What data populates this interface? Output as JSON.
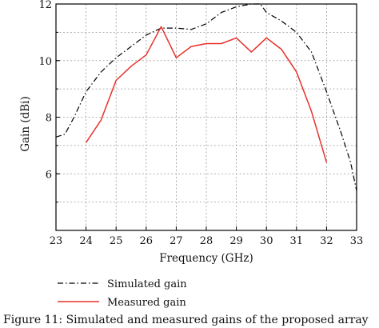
{
  "chart_data": {
    "type": "line",
    "xlabel": "Frequency (GHz)",
    "ylabel": "Gain (dBi)",
    "xlim": [
      23,
      33
    ],
    "ylim": [
      4,
      12
    ],
    "xticks": [
      23,
      24,
      25,
      26,
      27,
      28,
      29,
      30,
      31,
      32,
      33
    ],
    "yticks": [
      6,
      8,
      10,
      12
    ],
    "grid": true,
    "legend_position": "bottom-left",
    "series": [
      {
        "name": "Simulated gain",
        "style": "dash-dot",
        "color": "#000000",
        "points": [
          [
            23.0,
            7.3
          ],
          [
            23.3,
            7.4
          ],
          [
            23.6,
            8.0
          ],
          [
            24.0,
            8.9
          ],
          [
            24.5,
            9.6
          ],
          [
            25.0,
            10.1
          ],
          [
            25.5,
            10.5
          ],
          [
            26.0,
            10.9
          ],
          [
            26.5,
            11.15
          ],
          [
            27.0,
            11.15
          ],
          [
            27.5,
            11.1
          ],
          [
            28.0,
            11.3
          ],
          [
            28.5,
            11.7
          ],
          [
            29.0,
            11.9
          ],
          [
            29.5,
            12.0
          ],
          [
            29.8,
            12.0
          ],
          [
            30.0,
            11.7
          ],
          [
            30.5,
            11.4
          ],
          [
            31.0,
            11.0
          ],
          [
            31.5,
            10.3
          ],
          [
            32.0,
            8.9
          ],
          [
            32.5,
            7.4
          ],
          [
            32.8,
            6.4
          ],
          [
            33.0,
            5.4
          ]
        ]
      },
      {
        "name": "Measured gain",
        "style": "solid",
        "color": "#e8302a",
        "points": [
          [
            24.0,
            7.1
          ],
          [
            24.5,
            7.9
          ],
          [
            25.0,
            9.3
          ],
          [
            25.5,
            9.8
          ],
          [
            26.0,
            10.2
          ],
          [
            26.5,
            11.2
          ],
          [
            27.0,
            10.1
          ],
          [
            27.5,
            10.5
          ],
          [
            28.0,
            10.6
          ],
          [
            28.5,
            10.6
          ],
          [
            29.0,
            10.8
          ],
          [
            29.5,
            10.3
          ],
          [
            30.0,
            10.8
          ],
          [
            30.5,
            10.4
          ],
          [
            31.0,
            9.6
          ],
          [
            31.5,
            8.2
          ],
          [
            32.0,
            6.4
          ]
        ]
      }
    ]
  },
  "caption": "Figure 11: Simulated and measured gains of the proposed array"
}
